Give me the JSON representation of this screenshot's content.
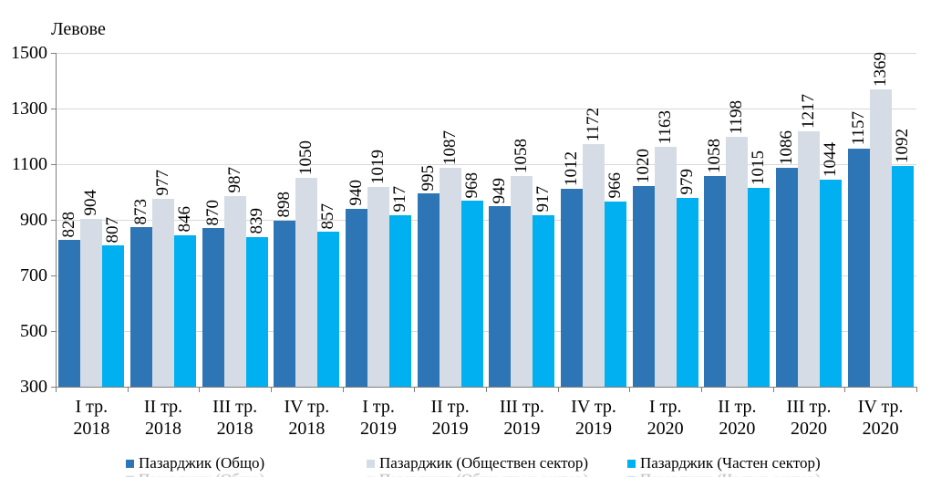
{
  "chart_data": {
    "type": "bar",
    "ylabel": "Левове",
    "ylim": [
      300,
      1500
    ],
    "yticks": [
      300,
      500,
      700,
      900,
      1100,
      1300,
      1500
    ],
    "grid": true,
    "legend_position": "bottom",
    "bar_label_rotation_deg": 90,
    "categories": [
      {
        "quarter": "I тр.",
        "year": "2018"
      },
      {
        "quarter": "II тр.",
        "year": "2018"
      },
      {
        "quarter": "III тр.",
        "year": "2018"
      },
      {
        "quarter": "IV тр.",
        "year": "2018"
      },
      {
        "quarter": "I тр.",
        "year": "2019"
      },
      {
        "quarter": "II тр.",
        "year": "2019"
      },
      {
        "quarter": "III тр.",
        "year": "2019"
      },
      {
        "quarter": "IV тр.",
        "year": "2019"
      },
      {
        "quarter": "I тр.",
        "year": "2020"
      },
      {
        "quarter": "II тр.",
        "year": "2020"
      },
      {
        "quarter": "III тр.",
        "year": "2020"
      },
      {
        "quarter": "IV тр.",
        "year": "2020"
      }
    ],
    "series": [
      {
        "name": "Пазарджик (Общо)",
        "color": "#2E75B6",
        "values": [
          828,
          873,
          870,
          898,
          940,
          995,
          949,
          1012,
          1020,
          1058,
          1086,
          1157
        ]
      },
      {
        "name": "Пазарджик (Обществен сектор)",
        "color": "#D6DCE5",
        "values": [
          904,
          977,
          987,
          1050,
          1019,
          1087,
          1058,
          1172,
          1163,
          1198,
          1217,
          1369
        ]
      },
      {
        "name": "Пазарджик (Частен сектор)",
        "color": "#00B0F0",
        "values": [
          807,
          846,
          839,
          857,
          917,
          968,
          917,
          966,
          979,
          1015,
          1044,
          1092
        ]
      }
    ]
  },
  "colors": {
    "gridline": "#D9D9D9",
    "axis": "#7F7F7F",
    "text": "#000000",
    "background": "#FFFFFF"
  },
  "legend_x_positions": [
    138,
    402,
    688
  ]
}
